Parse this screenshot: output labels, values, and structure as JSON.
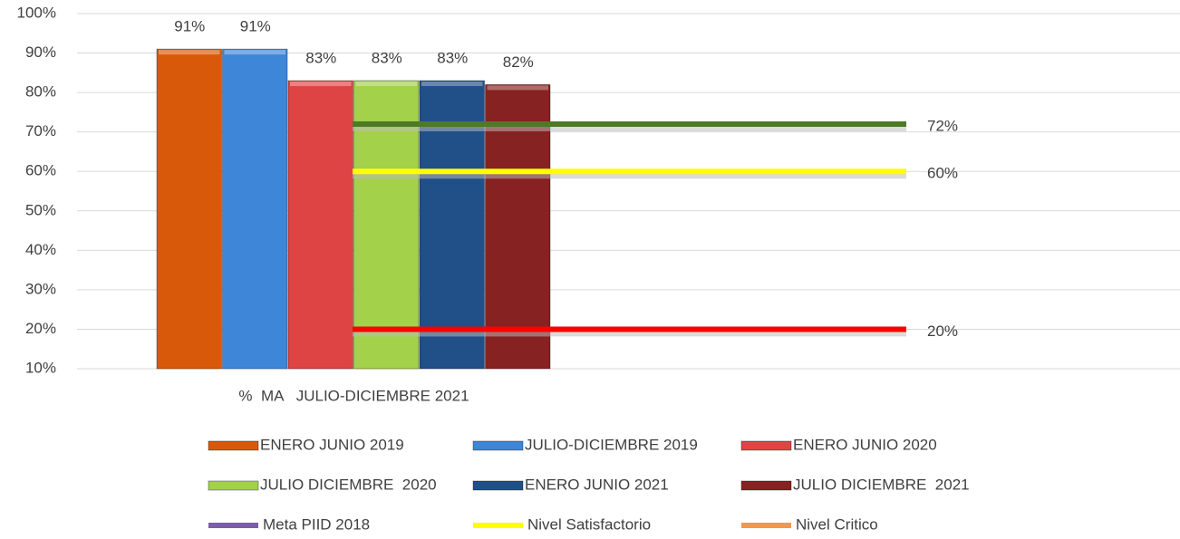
{
  "chart_data": {
    "type": "bar",
    "categories": [
      "%  MA   JULIO-DICIEMBRE 2021"
    ],
    "series": [
      {
        "name": "ENERO JUNIO 2019",
        "color": "#d9590b",
        "values": [
          91
        ],
        "value_labels": [
          "91%"
        ]
      },
      {
        "name": "JULIO-DICIEMBRE 2019",
        "color": "#3d86d8",
        "values": [
          91
        ],
        "value_labels": [
          "91%"
        ]
      },
      {
        "name": "ENERO JUNIO 2020",
        "color": "#de4444",
        "values": [
          83
        ],
        "value_labels": [
          "83%"
        ]
      },
      {
        "name": "JULIO DICIEMBRE  2020",
        "color": "#a3d14a",
        "values": [
          83
        ],
        "value_labels": [
          "83%"
        ]
      },
      {
        "name": "ENERO JUNIO 2021",
        "color": "#214f88",
        "values": [
          83
        ],
        "value_labels": [
          "83%"
        ]
      },
      {
        "name": "JULIO DICIEMBRE  2021",
        "color": "#862222",
        "values": [
          82
        ],
        "value_labels": [
          "82%"
        ]
      }
    ],
    "lines": [
      {
        "name": "Meta PIID 2018",
        "color": "#4e7a26",
        "legend_color": "#7b5ea7",
        "values": [
          72
        ],
        "value_labels": [
          "72%"
        ]
      },
      {
        "name": "Nivel Satisfactorio",
        "color": "#ffff00",
        "legend_color": "#ffff00",
        "values": [
          60
        ],
        "value_labels": [
          "60%"
        ]
      },
      {
        "name": "Nivel Critico",
        "color": "#ff0000",
        "legend_color": "#f79646",
        "values": [
          20
        ],
        "value_labels": [
          "20%"
        ]
      }
    ],
    "ylim": [
      10,
      100
    ],
    "yticks": [
      {
        "value": 10,
        "label": "10%"
      },
      {
        "value": 20,
        "label": "20%"
      },
      {
        "value": 30,
        "label": "30%"
      },
      {
        "value": 40,
        "label": "40%"
      },
      {
        "value": 50,
        "label": "50%"
      },
      {
        "value": 60,
        "label": "60%"
      },
      {
        "value": 70,
        "label": "70%"
      },
      {
        "value": 80,
        "label": "80%"
      },
      {
        "value": 90,
        "label": "90%"
      },
      {
        "value": 100,
        "label": "100%"
      }
    ],
    "grid": true
  }
}
